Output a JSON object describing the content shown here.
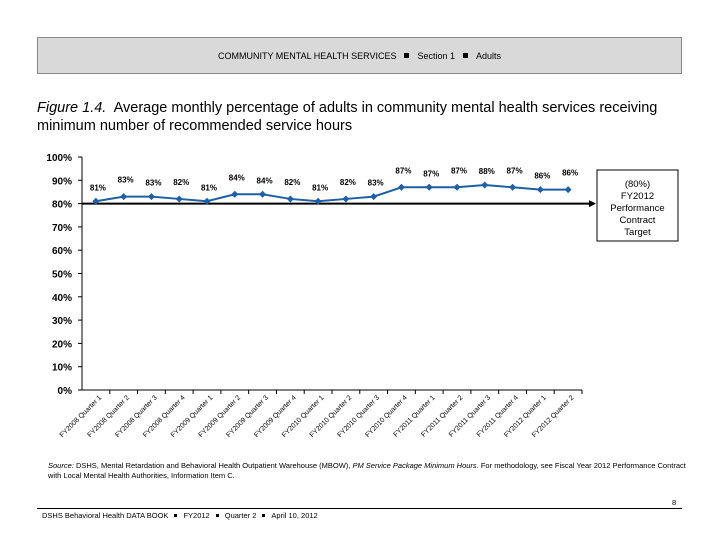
{
  "header": {
    "parts": [
      "COMMUNITY MENTAL HEALTH SERVICES",
      "Section 1",
      "Adults"
    ]
  },
  "figure": {
    "number": "Figure 1.4.",
    "caption": "Average monthly percentage of adults in community mental health services receiving minimum number of recommended service hours"
  },
  "chart_data": {
    "type": "line",
    "categories": [
      "FY2008 Quarter 1",
      "FY2008 Quarter 2",
      "FY2008 Quarter 3",
      "FY2008 Quarter 4",
      "FY2009 Quarter 1",
      "FY2009 Quarter 2",
      "FY2009 Quarter 3",
      "FY2009 Quarter 4",
      "FY2010 Quarter 1",
      "FY2010 Quarter 2",
      "FY2010 Quarter 3",
      "FY2010 Quarter 4",
      "FY2011 Quarter 1",
      "FY2011 Quarter 2",
      "FY2011 Quarter 3",
      "FY2011 Quarter 4",
      "FY2012 Quarter 1",
      "FY2012 Quarter 2"
    ],
    "values": [
      81,
      83,
      83,
      82,
      81,
      84,
      84,
      82,
      81,
      82,
      83,
      87,
      87,
      87,
      88,
      87,
      86,
      86
    ],
    "data_labels": [
      "81%",
      "83%",
      "83%",
      "82%",
      "81%",
      "84%",
      "84%",
      "82%",
      "81%",
      "82%",
      "83%",
      "87%",
      "87%",
      "87%",
      "88%",
      "87%",
      "86%",
      "86%"
    ],
    "yticks": [
      "0%",
      "10%",
      "20%",
      "30%",
      "40%",
      "50%",
      "60%",
      "70%",
      "80%",
      "90%",
      "100%"
    ],
    "ylim": [
      0,
      100
    ],
    "target": {
      "value": 80,
      "label_lines": [
        "(80%)",
        "FY2012",
        "Performance",
        "Contract",
        "Target"
      ]
    },
    "series_color": "#1f5fa6",
    "grid": false
  },
  "source": {
    "label": "Source:",
    "text": " DSHS, Mental Retardation and Behavioral Health Outpatient Warehouse (MBOW), ",
    "italic": "PM Service Package Minimum Hours",
    "text2": ". For methodology, see Fiscal Year 2012 Performance Contract with Local Mental Health Authorities, Information Item C."
  },
  "page_number": "8",
  "footer": {
    "items": [
      "DSHS Behavioral Health DATA BOOK",
      "FY2012",
      "Quarter 2",
      "April 10, 2012"
    ]
  }
}
